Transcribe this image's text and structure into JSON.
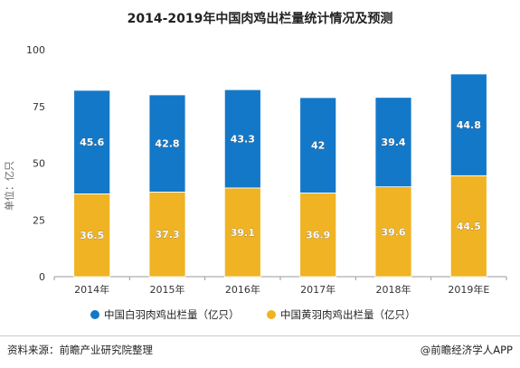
{
  "title": "2014-2019年中国肉鸡出栏量统计情况及预测",
  "source": "资料来源：前瞻产业研究院整理",
  "brand": "@前瞻经济学人APP",
  "chart_data": {
    "type": "bar",
    "stacked": true,
    "categories": [
      "2014年",
      "2015年",
      "2016年",
      "2017年",
      "2018年",
      "2019年E"
    ],
    "series": [
      {
        "name": "中国黄羽肉鸡出栏量（亿只）",
        "values": [
          36.5,
          37.3,
          39.1,
          36.9,
          39.6,
          44.5
        ],
        "color": "#f0b323"
      },
      {
        "name": "中国白羽肉鸡出栏量（亿只）",
        "values": [
          45.6,
          42.8,
          43.3,
          42,
          39.4,
          44.8
        ],
        "color": "#1478c8"
      }
    ],
    "ylabel": "单位：亿只",
    "ylim": [
      0,
      100
    ],
    "yticks": [
      0,
      25,
      50,
      75,
      100
    ],
    "grid": false,
    "legend_position": "bottom",
    "legend_order": [
      1,
      0
    ]
  }
}
